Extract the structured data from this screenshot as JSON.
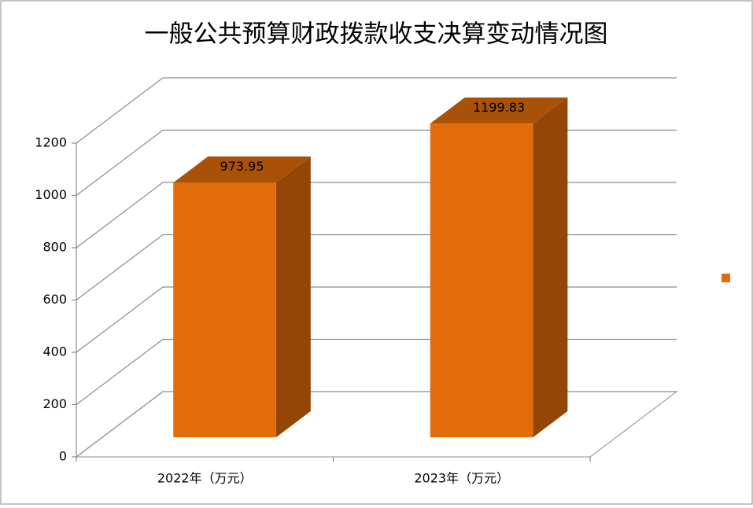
{
  "chart_data": {
    "type": "bar3d",
    "title": "一般公共预算财政拨款收支决算变动情况图",
    "categories": [
      "2022年（万元）",
      "2023年（万元）"
    ],
    "series": [
      {
        "color": "#e36c0a",
        "values": [
          973.95,
          1199.83
        ]
      }
    ],
    "ylim": [
      0,
      1200
    ],
    "yticks": [
      0,
      200,
      400,
      600,
      800,
      1000,
      1200
    ],
    "grid": true,
    "legend": "right"
  }
}
